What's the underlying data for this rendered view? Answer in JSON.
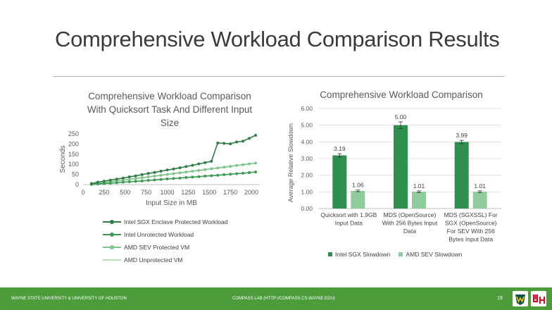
{
  "slide": {
    "title": "Comprehensive Workload Comparison Results",
    "footer_left": "WAYNE STATE UNIVERSITY & UNIVERSITY OF HOUSTON",
    "footer_center": "COMPASS LAB (HTTP://COMPASS.CS.WAYNE.EDU)",
    "page_number": "19",
    "footer_color": "#4c9c3c",
    "logos": [
      "wsu-logo",
      "uh-logo"
    ]
  },
  "chart_data": [
    {
      "type": "line",
      "title": "Comprehensive Workload Comparison With Quicksort Task And Different Input Size",
      "title_lines": [
        "Comprehensive Workload Comparison",
        "With Quicksort Task And Different Input",
        "Size"
      ],
      "xlabel": "Input Size in MB",
      "ylabel": "Seconds",
      "xlim": [
        0,
        2100
      ],
      "ylim": [
        0,
        250
      ],
      "xticks": [
        0,
        250,
        500,
        750,
        1000,
        1250,
        1500,
        1750,
        2000
      ],
      "yticks": [
        0,
        50,
        100,
        150,
        200,
        250
      ],
      "grid": false,
      "legend_position": "bottom",
      "series": [
        {
          "name": "Intel SGX Enclave Protected Workload",
          "color": "#2f7d46",
          "marker": true,
          "points": [
            [
              100,
              5
            ],
            [
              175,
              12
            ],
            [
              250,
              17
            ],
            [
              325,
              22
            ],
            [
              400,
              27
            ],
            [
              475,
              32
            ],
            [
              550,
              38
            ],
            [
              625,
              43
            ],
            [
              700,
              49
            ],
            [
              775,
              55
            ],
            [
              850,
              60
            ],
            [
              925,
              66
            ],
            [
              1000,
              72
            ],
            [
              1075,
              77
            ],
            [
              1150,
              83
            ],
            [
              1225,
              89
            ],
            [
              1300,
              95
            ],
            [
              1375,
              102
            ],
            [
              1450,
              108
            ],
            [
              1525,
              115
            ],
            [
              1600,
              205
            ],
            [
              1675,
              203
            ],
            [
              1750,
              201
            ],
            [
              1825,
              210
            ],
            [
              1900,
              214
            ],
            [
              1975,
              228
            ],
            [
              2050,
              243
            ]
          ]
        },
        {
          "name": "Intel Unrotected Workload",
          "color": "#3c9a55",
          "marker": true,
          "points": [
            [
              100,
              1
            ],
            [
              175,
              3
            ],
            [
              250,
              5
            ],
            [
              325,
              7
            ],
            [
              400,
              9
            ],
            [
              475,
              12
            ],
            [
              550,
              14
            ],
            [
              625,
              16
            ],
            [
              700,
              18
            ],
            [
              775,
              21
            ],
            [
              850,
              23
            ],
            [
              925,
              25
            ],
            [
              1000,
              28
            ],
            [
              1075,
              30
            ],
            [
              1150,
              32
            ],
            [
              1225,
              35
            ],
            [
              1300,
              37
            ],
            [
              1375,
              39
            ],
            [
              1450,
              42
            ],
            [
              1525,
              44
            ],
            [
              1600,
              46
            ],
            [
              1675,
              49
            ],
            [
              1750,
              51
            ],
            [
              1825,
              54
            ],
            [
              1900,
              56
            ],
            [
              1975,
              59
            ],
            [
              2050,
              62
            ]
          ]
        },
        {
          "name": "AMD SEV Protected VM",
          "color": "#7ec48b",
          "marker": true,
          "points": [
            [
              100,
              2
            ],
            [
              175,
              6
            ],
            [
              250,
              10
            ],
            [
              325,
              14
            ],
            [
              400,
              18
            ],
            [
              475,
              22
            ],
            [
              550,
              26
            ],
            [
              625,
              30
            ],
            [
              700,
              34
            ],
            [
              775,
              38
            ],
            [
              850,
              42
            ],
            [
              925,
              46
            ],
            [
              1000,
              50
            ],
            [
              1075,
              54
            ],
            [
              1150,
              58
            ],
            [
              1225,
              62
            ],
            [
              1300,
              66
            ],
            [
              1375,
              70
            ],
            [
              1450,
              74
            ],
            [
              1525,
              78
            ],
            [
              1600,
              82
            ],
            [
              1675,
              86
            ],
            [
              1750,
              90
            ],
            [
              1825,
              94
            ],
            [
              1900,
              98
            ],
            [
              1975,
              102
            ],
            [
              2050,
              106
            ]
          ]
        },
        {
          "name": "AMD  Unprotected VM",
          "color": "#b7ddb9",
          "marker": false,
          "points": [
            [
              100,
              2
            ],
            [
              175,
              6
            ],
            [
              250,
              10
            ],
            [
              325,
              14
            ],
            [
              400,
              18
            ],
            [
              475,
              22
            ],
            [
              550,
              26
            ],
            [
              625,
              30
            ],
            [
              700,
              34
            ],
            [
              775,
              38
            ],
            [
              850,
              42
            ],
            [
              925,
              46
            ],
            [
              1000,
              50
            ],
            [
              1075,
              54
            ],
            [
              1150,
              58
            ],
            [
              1225,
              62
            ],
            [
              1300,
              66
            ],
            [
              1375,
              70
            ],
            [
              1450,
              74
            ],
            [
              1525,
              78
            ],
            [
              1600,
              82
            ],
            [
              1675,
              86
            ],
            [
              1750,
              90
            ],
            [
              1825,
              94
            ],
            [
              1900,
              98
            ],
            [
              1975,
              102
            ],
            [
              2050,
              106
            ]
          ]
        }
      ]
    },
    {
      "type": "bar",
      "title": "Comprehensive Workload Comparison",
      "ylabel": "Average Relative Slowdown",
      "xlabel": "",
      "ylim": [
        0,
        6
      ],
      "yticks": [
        "0.00",
        "1.00",
        "2.00",
        "3.00",
        "4.00",
        "5.00",
        "6.00"
      ],
      "grid": true,
      "legend_position": "bottom",
      "categories": [
        [
          "Quicksort with 1.9GB",
          "Input Data"
        ],
        [
          "MDS (OpenSource)",
          "With 256 Bytes Input",
          "Data"
        ],
        [
          "MDS (SGXSSL) For",
          "SGX (OpenSource)",
          "For SEV With 256",
          "Bytes Input Data"
        ]
      ],
      "series": [
        {
          "name": "Intel SGX Slowdown",
          "color": "#2f8f4e",
          "values": [
            3.19,
            5.0,
            3.99
          ],
          "labels": [
            "3.19",
            "5.00",
            "3.99"
          ],
          "errors": [
            0.1,
            0.2,
            0.1
          ]
        },
        {
          "name": "AMD SEV Slowdown",
          "color": "#8fcb9b",
          "values": [
            1.06,
            1.01,
            1.01
          ],
          "labels": [
            "1.06",
            "1.01",
            "1.01"
          ],
          "errors": [
            0.05,
            0.05,
            0.05
          ]
        }
      ]
    }
  ]
}
